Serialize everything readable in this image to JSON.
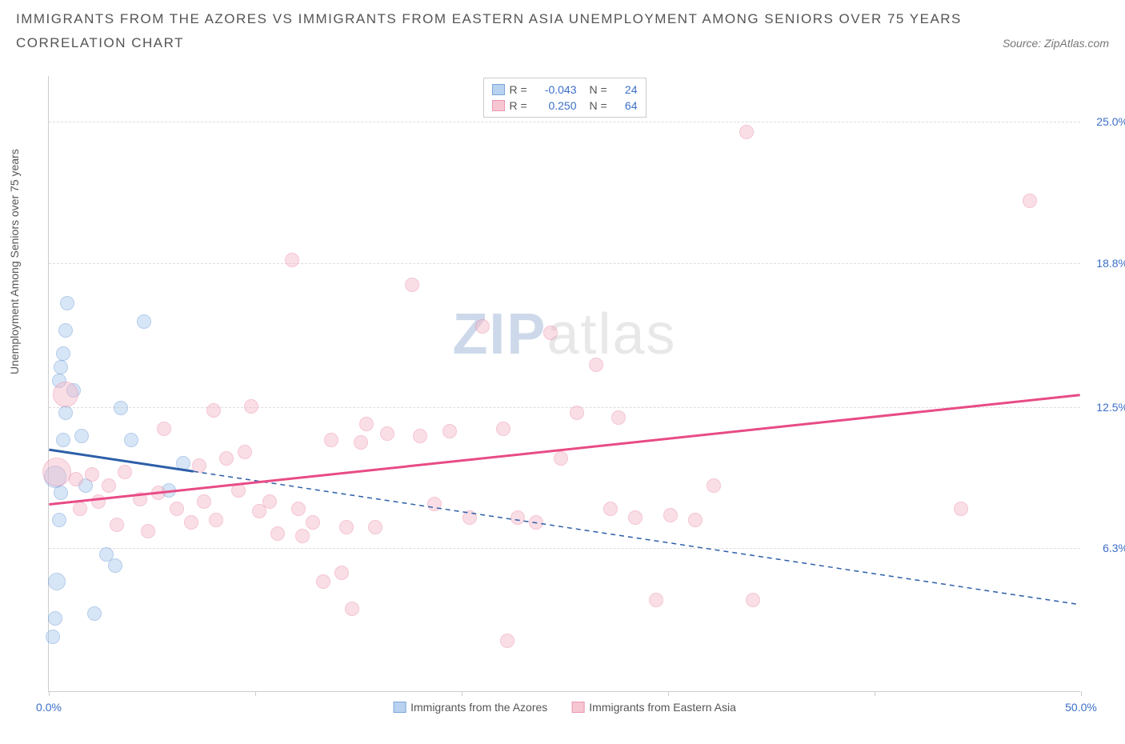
{
  "title_line1": "IMMIGRANTS FROM THE AZORES VS IMMIGRANTS FROM EASTERN ASIA UNEMPLOYMENT AMONG SENIORS OVER 75 YEARS",
  "title_line2": "CORRELATION CHART",
  "source": "Source: ZipAtlas.com",
  "y_axis_label": "Unemployment Among Seniors over 75 years",
  "watermark_a": "ZIP",
  "watermark_b": "atlas",
  "chart": {
    "type": "scatter",
    "x_min": 0,
    "x_max": 50,
    "y_min": 0,
    "y_max": 27,
    "x_ticks": [
      0,
      10,
      20,
      30,
      40,
      50
    ],
    "x_tick_labels": {
      "0": "0.0%",
      "50": "50.0%"
    },
    "y_ticks": [
      6.3,
      12.5,
      18.8,
      25.0
    ],
    "y_tick_labels": [
      "6.3%",
      "12.5%",
      "18.8%",
      "25.0%"
    ],
    "background_color": "#ffffff",
    "grid_color": "#dddddd",
    "axis_color": "#cccccc",
    "tick_label_color": "#3b6fc9",
    "series": [
      {
        "name": "Immigrants from the Azores",
        "fill_color": "#a8c8ec",
        "fill_opacity": 0.45,
        "stroke_color": "#5b8fd4",
        "trend_color": "#2d5fa8",
        "trend_solid_end_x": 7,
        "trend": {
          "x1": 0,
          "y1": 10.6,
          "x2": 50,
          "y2": 3.8
        },
        "R": "-0.043",
        "N": "24",
        "radius": 9,
        "points": [
          {
            "x": 0.2,
            "y": 2.4,
            "r": 9
          },
          {
            "x": 0.3,
            "y": 3.2,
            "r": 9
          },
          {
            "x": 0.4,
            "y": 4.8,
            "r": 11
          },
          {
            "x": 0.5,
            "y": 7.5,
            "r": 9
          },
          {
            "x": 0.6,
            "y": 8.7,
            "r": 9
          },
          {
            "x": 0.3,
            "y": 9.4,
            "r": 14
          },
          {
            "x": 0.7,
            "y": 11.0,
            "r": 9
          },
          {
            "x": 0.8,
            "y": 12.2,
            "r": 9
          },
          {
            "x": 0.5,
            "y": 13.6,
            "r": 9
          },
          {
            "x": 0.6,
            "y": 14.2,
            "r": 9
          },
          {
            "x": 0.7,
            "y": 14.8,
            "r": 9
          },
          {
            "x": 0.8,
            "y": 15.8,
            "r": 9
          },
          {
            "x": 0.9,
            "y": 17.0,
            "r": 9
          },
          {
            "x": 1.2,
            "y": 13.2,
            "r": 9
          },
          {
            "x": 1.6,
            "y": 11.2,
            "r": 9
          },
          {
            "x": 1.8,
            "y": 9.0,
            "r": 9
          },
          {
            "x": 2.2,
            "y": 3.4,
            "r": 9
          },
          {
            "x": 2.8,
            "y": 6.0,
            "r": 9
          },
          {
            "x": 3.2,
            "y": 5.5,
            "r": 9
          },
          {
            "x": 3.5,
            "y": 12.4,
            "r": 9
          },
          {
            "x": 4.6,
            "y": 16.2,
            "r": 9
          },
          {
            "x": 4.0,
            "y": 11.0,
            "r": 9
          },
          {
            "x": 5.8,
            "y": 8.8,
            "r": 9
          },
          {
            "x": 6.5,
            "y": 10.0,
            "r": 9
          }
        ]
      },
      {
        "name": "Immigrants from Eastern Asia",
        "fill_color": "#f4b8c8",
        "fill_opacity": 0.45,
        "stroke_color": "#e77fa0",
        "trend_color": "#e84b85",
        "trend_solid_end_x": 50,
        "trend": {
          "x1": 0,
          "y1": 8.2,
          "x2": 50,
          "y2": 13.0
        },
        "R": "0.250",
        "N": "64",
        "radius": 9,
        "points": [
          {
            "x": 0.4,
            "y": 9.6,
            "r": 18
          },
          {
            "x": 0.8,
            "y": 13.0,
            "r": 16
          },
          {
            "x": 1.3,
            "y": 9.3,
            "r": 9
          },
          {
            "x": 1.5,
            "y": 8.0,
            "r": 9
          },
          {
            "x": 2.1,
            "y": 9.5,
            "r": 9
          },
          {
            "x": 2.4,
            "y": 8.3,
            "r": 9
          },
          {
            "x": 2.9,
            "y": 9.0,
            "r": 9
          },
          {
            "x": 3.3,
            "y": 7.3,
            "r": 9
          },
          {
            "x": 3.7,
            "y": 9.6,
            "r": 9
          },
          {
            "x": 4.4,
            "y": 8.4,
            "r": 9
          },
          {
            "x": 4.8,
            "y": 7.0,
            "r": 9
          },
          {
            "x": 5.3,
            "y": 8.7,
            "r": 9
          },
          {
            "x": 5.6,
            "y": 11.5,
            "r": 9
          },
          {
            "x": 6.2,
            "y": 8.0,
            "r": 9
          },
          {
            "x": 6.9,
            "y": 7.4,
            "r": 9
          },
          {
            "x": 7.3,
            "y": 9.9,
            "r": 9
          },
          {
            "x": 7.5,
            "y": 8.3,
            "r": 9
          },
          {
            "x": 8.0,
            "y": 12.3,
            "r": 9
          },
          {
            "x": 8.1,
            "y": 7.5,
            "r": 9
          },
          {
            "x": 8.6,
            "y": 10.2,
            "r": 9
          },
          {
            "x": 9.2,
            "y": 8.8,
            "r": 9
          },
          {
            "x": 9.5,
            "y": 10.5,
            "r": 9
          },
          {
            "x": 9.8,
            "y": 12.5,
            "r": 9
          },
          {
            "x": 10.2,
            "y": 7.9,
            "r": 9
          },
          {
            "x": 10.7,
            "y": 8.3,
            "r": 9
          },
          {
            "x": 11.1,
            "y": 6.9,
            "r": 9
          },
          {
            "x": 11.8,
            "y": 18.9,
            "r": 9
          },
          {
            "x": 12.1,
            "y": 8.0,
            "r": 9
          },
          {
            "x": 12.3,
            "y": 6.8,
            "r": 9
          },
          {
            "x": 12.8,
            "y": 7.4,
            "r": 9
          },
          {
            "x": 13.3,
            "y": 4.8,
            "r": 9
          },
          {
            "x": 13.7,
            "y": 11.0,
            "r": 9
          },
          {
            "x": 14.2,
            "y": 5.2,
            "r": 9
          },
          {
            "x": 14.4,
            "y": 7.2,
            "r": 9
          },
          {
            "x": 14.7,
            "y": 3.6,
            "r": 9
          },
          {
            "x": 15.1,
            "y": 10.9,
            "r": 9
          },
          {
            "x": 15.4,
            "y": 11.7,
            "r": 9
          },
          {
            "x": 15.8,
            "y": 7.2,
            "r": 9
          },
          {
            "x": 16.4,
            "y": 11.3,
            "r": 9
          },
          {
            "x": 17.6,
            "y": 17.8,
            "r": 9
          },
          {
            "x": 18.0,
            "y": 11.2,
            "r": 9
          },
          {
            "x": 18.7,
            "y": 8.2,
            "r": 9
          },
          {
            "x": 19.4,
            "y": 11.4,
            "r": 9
          },
          {
            "x": 20.4,
            "y": 7.6,
            "r": 9
          },
          {
            "x": 21.0,
            "y": 16.0,
            "r": 9
          },
          {
            "x": 22.0,
            "y": 11.5,
            "r": 9
          },
          {
            "x": 22.2,
            "y": 2.2,
            "r": 9
          },
          {
            "x": 22.7,
            "y": 7.6,
            "r": 9
          },
          {
            "x": 23.6,
            "y": 7.4,
            "r": 9
          },
          {
            "x": 24.3,
            "y": 15.7,
            "r": 9
          },
          {
            "x": 24.8,
            "y": 10.2,
            "r": 9
          },
          {
            "x": 25.6,
            "y": 12.2,
            "r": 9
          },
          {
            "x": 26.5,
            "y": 14.3,
            "r": 9
          },
          {
            "x": 27.2,
            "y": 8.0,
            "r": 9
          },
          {
            "x": 27.6,
            "y": 12.0,
            "r": 9
          },
          {
            "x": 28.4,
            "y": 7.6,
            "r": 9
          },
          {
            "x": 29.4,
            "y": 4.0,
            "r": 9
          },
          {
            "x": 30.1,
            "y": 7.7,
            "r": 9
          },
          {
            "x": 31.3,
            "y": 7.5,
            "r": 9
          },
          {
            "x": 32.2,
            "y": 9.0,
            "r": 9
          },
          {
            "x": 33.8,
            "y": 24.5,
            "r": 9
          },
          {
            "x": 34.1,
            "y": 4.0,
            "r": 9
          },
          {
            "x": 44.2,
            "y": 8.0,
            "r": 9
          },
          {
            "x": 47.5,
            "y": 21.5,
            "r": 9
          }
        ]
      }
    ]
  },
  "legend_labels": {
    "R": "R =",
    "N": "N ="
  }
}
